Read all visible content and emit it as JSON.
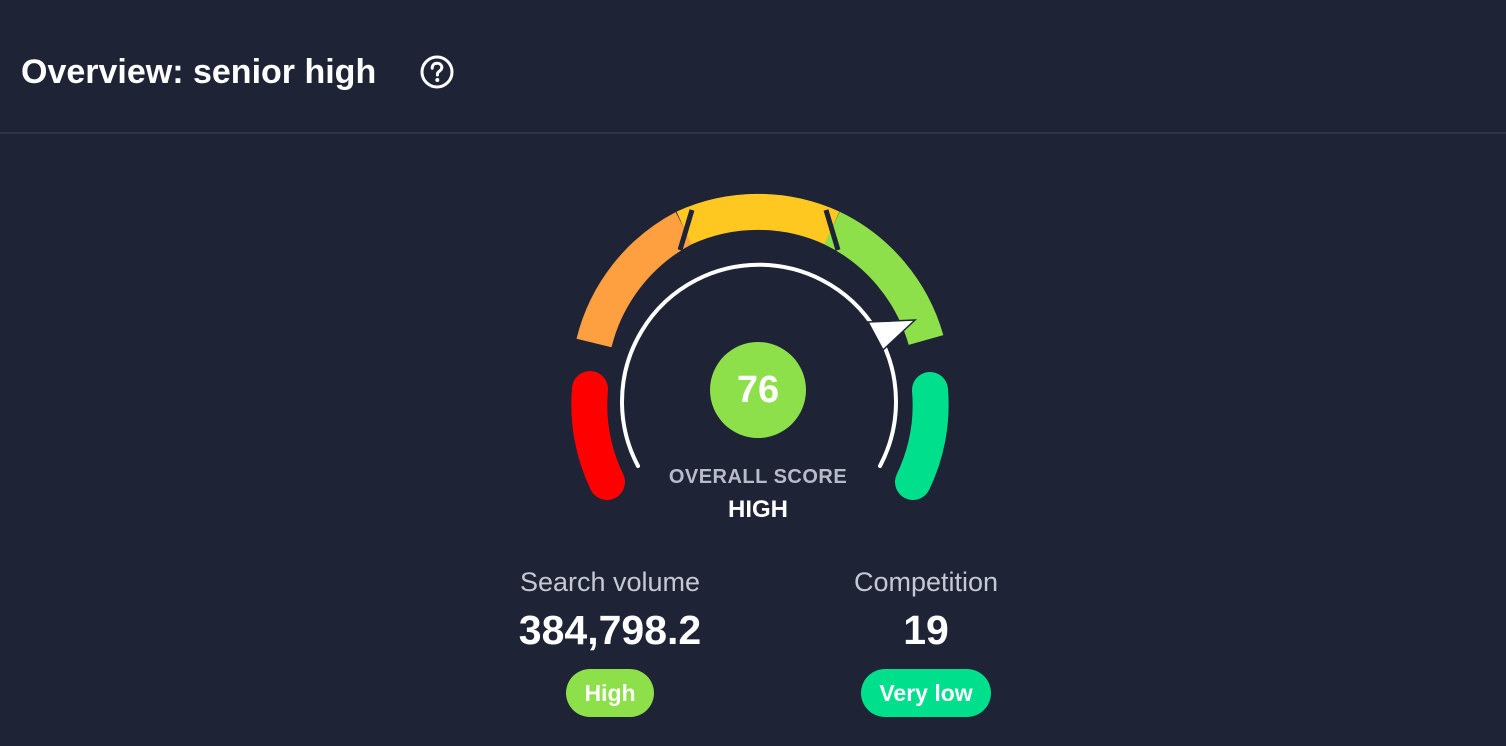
{
  "header": {
    "title": "Overview: senior high",
    "help_icon": "help-circle-icon"
  },
  "gauge": {
    "score": "76",
    "score_fraction": 0.76,
    "label": "OVERALL SCORE",
    "level": "HIGH",
    "colors": {
      "segment_1": "#ff0000",
      "segment_2": "#ffa040",
      "segment_3": "#ffc820",
      "segment_4": "#8ee04a",
      "segment_5": "#00df8c",
      "score_circle": "#8ee04a"
    }
  },
  "metrics": {
    "search_volume": {
      "label": "Search volume",
      "value": "384,798.2",
      "badge": "High",
      "badge_color": "#8ee04a"
    },
    "competition": {
      "label": "Competition",
      "value": "19",
      "badge": "Very low",
      "badge_color": "#00df8c"
    }
  }
}
